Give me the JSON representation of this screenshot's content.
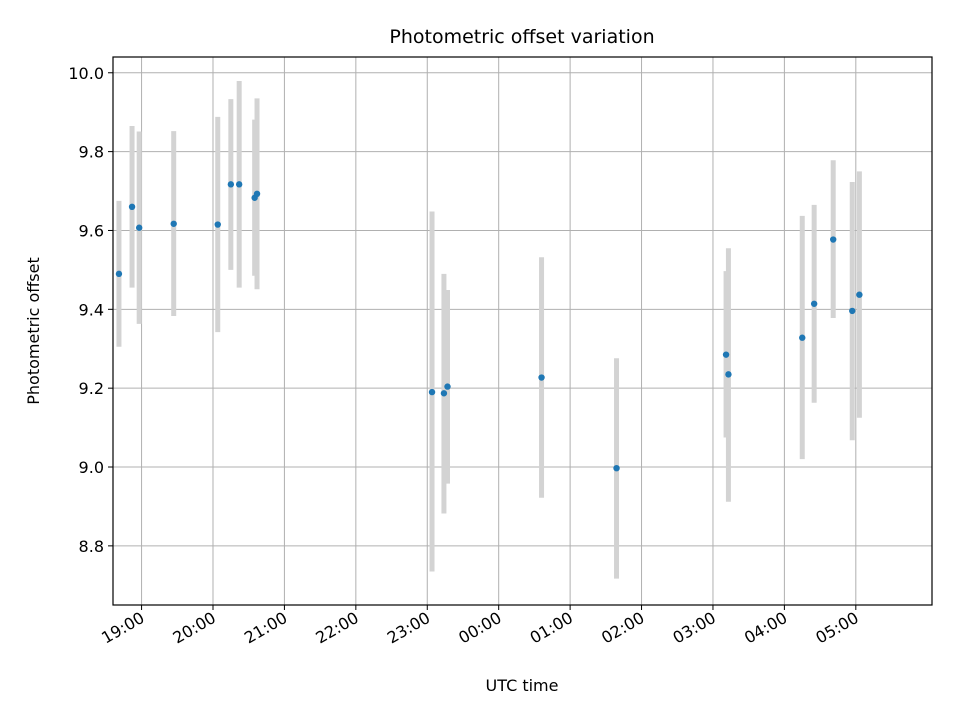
{
  "chart_data": {
    "type": "scatter",
    "title": "Photometric offset variation",
    "xlabel": "UTC time",
    "ylabel": "Photometric offset",
    "x_axis_type": "time",
    "xlim": [
      "18:36",
      "06:04"
    ],
    "ylim": [
      8.65,
      10.04
    ],
    "grid": true,
    "legend": "none",
    "x_ticks": [
      {
        "value": "19:00",
        "label": "19:00"
      },
      {
        "value": "20:00",
        "label": "20:00"
      },
      {
        "value": "21:00",
        "label": "21:00"
      },
      {
        "value": "22:00",
        "label": "22:00"
      },
      {
        "value": "23:00",
        "label": "23:00"
      },
      {
        "value": "00:00",
        "label": "00:00"
      },
      {
        "value": "01:00",
        "label": "01:00"
      },
      {
        "value": "02:00",
        "label": "02:00"
      },
      {
        "value": "03:00",
        "label": "03:00"
      },
      {
        "value": "04:00",
        "label": "04:00"
      },
      {
        "value": "05:00",
        "label": "05:00"
      }
    ],
    "y_ticks": [
      {
        "value": 8.8,
        "label": "8.8"
      },
      {
        "value": 9.0,
        "label": "9.0"
      },
      {
        "value": 9.2,
        "label": "9.2"
      },
      {
        "value": 9.4,
        "label": "9.4"
      },
      {
        "value": 9.6,
        "label": "9.6"
      },
      {
        "value": 9.8,
        "label": "9.8"
      },
      {
        "value": 10.0,
        "label": "10.0"
      }
    ],
    "colors": {
      "point": "#1f77b4",
      "errorbar": "#d3d3d3",
      "grid": "#b0b0b0"
    },
    "points": [
      {
        "x": "18:41",
        "y": 9.49,
        "err_low": 9.305,
        "err_high": 9.675
      },
      {
        "x": "18:52",
        "y": 9.66,
        "err_low": 9.455,
        "err_high": 9.865
      },
      {
        "x": "18:58",
        "y": 9.607,
        "err_low": 9.363,
        "err_high": 9.851
      },
      {
        "x": "19:27",
        "y": 9.617,
        "err_low": 9.383,
        "err_high": 9.852
      },
      {
        "x": "20:04",
        "y": 9.615,
        "err_low": 9.342,
        "err_high": 9.888
      },
      {
        "x": "20:15",
        "y": 9.717,
        "err_low": 9.5,
        "err_high": 9.933
      },
      {
        "x": "20:22",
        "y": 9.717,
        "err_low": 9.455,
        "err_high": 9.979
      },
      {
        "x": "20:35",
        "y": 9.683,
        "err_low": 9.485,
        "err_high": 9.881
      },
      {
        "x": "20:37",
        "y": 9.693,
        "err_low": 9.451,
        "err_high": 9.935
      },
      {
        "x": "23:04",
        "y": 9.19,
        "err_low": 8.735,
        "err_high": 9.648
      },
      {
        "x": "23:14",
        "y": 9.187,
        "err_low": 8.882,
        "err_high": 9.49
      },
      {
        "x": "23:17",
        "y": 9.204,
        "err_low": 8.958,
        "err_high": 9.449
      },
      {
        "x": "00:36",
        "y": 9.227,
        "err_low": 8.922,
        "err_high": 9.532
      },
      {
        "x": "01:39",
        "y": 8.997,
        "err_low": 8.717,
        "err_high": 9.276
      },
      {
        "x": "03:11",
        "y": 9.285,
        "err_low": 9.075,
        "err_high": 9.497
      },
      {
        "x": "03:13",
        "y": 9.235,
        "err_low": 8.912,
        "err_high": 9.555
      },
      {
        "x": "04:15",
        "y": 9.328,
        "err_low": 9.02,
        "err_high": 9.637
      },
      {
        "x": "04:25",
        "y": 9.414,
        "err_low": 9.163,
        "err_high": 9.665
      },
      {
        "x": "04:41",
        "y": 9.577,
        "err_low": 9.378,
        "err_high": 9.778
      },
      {
        "x": "04:57",
        "y": 9.396,
        "err_low": 9.068,
        "err_high": 9.723
      },
      {
        "x": "05:03",
        "y": 9.437,
        "err_low": 9.125,
        "err_high": 9.75
      }
    ]
  }
}
